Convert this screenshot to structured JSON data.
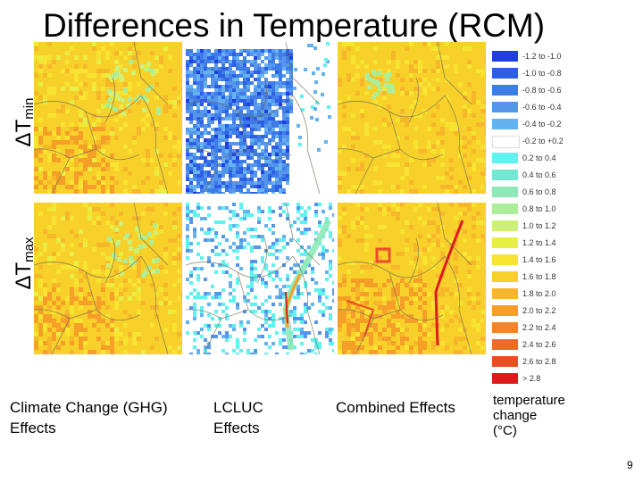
{
  "title": "Differences in Temperature (RCM)",
  "row_labels": [
    {
      "symbol": "ΔT",
      "sub": "min"
    },
    {
      "symbol": "ΔT",
      "sub": "max"
    }
  ],
  "captions": {
    "ghg": [
      "Climate Change (GHG)",
      "Effects"
    ],
    "lcluc": [
      "LCLUC",
      "Effects"
    ],
    "combined": [
      "Combined Effects"
    ]
  },
  "legend": {
    "title": [
      "temperature",
      "change",
      "(°C)"
    ],
    "classes": [
      {
        "label": "-1.2 to -1.0",
        "color": "#1f3fe0"
      },
      {
        "label": "-1.0 to -0.8",
        "color": "#2f5ee6"
      },
      {
        "label": "-0.8 to -0.6",
        "color": "#3e7de8"
      },
      {
        "label": "-0.6 to -0.4",
        "color": "#5596ec"
      },
      {
        "label": "-0.4 to -0.2",
        "color": "#64b2f0"
      },
      {
        "label": "-0.2 to +0.2",
        "color": "#ffffff"
      },
      {
        "label": "0.2 to 0.4",
        "color": "#5ff2ee"
      },
      {
        "label": "0.4 to 0.6",
        "color": "#72e7d2"
      },
      {
        "label": "0.6 to 0.8",
        "color": "#8ee8b8"
      },
      {
        "label": "0.8 to 1.0",
        "color": "#abed99"
      },
      {
        "label": "1.0 to 1.2",
        "color": "#cdf077"
      },
      {
        "label": "1.2 to 1.4",
        "color": "#e7ef45"
      },
      {
        "label": "1.4 to 1.6",
        "color": "#f7e430"
      },
      {
        "label": "1.6 to 1.8",
        "color": "#f8d02a"
      },
      {
        "label": "1.8 to 2.0",
        "color": "#f6b72a"
      },
      {
        "label": "2.0 to 2.2",
        "color": "#f59f28"
      },
      {
        "label": "2.2 to 2.4",
        "color": "#f4842a"
      },
      {
        "label": "2.4 to 2.6",
        "color": "#ef6a2a"
      },
      {
        "label": "2.6 to 2.8",
        "color": "#ea4d24"
      },
      {
        "label": "> 2.8",
        "color": "#e01a1a"
      }
    ]
  },
  "maps": [
    {
      "row": "min",
      "column": "ghg"
    },
    {
      "row": "min",
      "column": "lcluc"
    },
    {
      "row": "min",
      "column": "combined"
    },
    {
      "row": "max",
      "column": "ghg"
    },
    {
      "row": "max",
      "column": "lcluc"
    },
    {
      "row": "max",
      "column": "combined"
    }
  ],
  "page_number": "9"
}
